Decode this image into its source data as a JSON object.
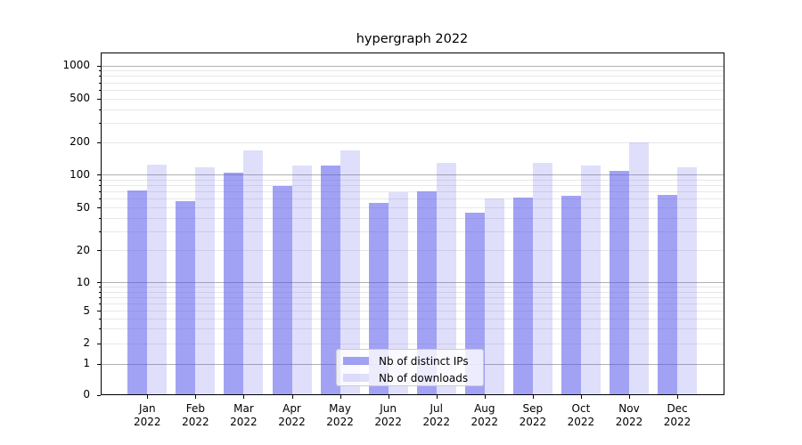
{
  "title": "hypergraph 2022",
  "legend": {
    "items": [
      {
        "label": "Nb of distinct IPs"
      },
      {
        "label": "Nb of downloads"
      }
    ]
  },
  "y_axis": {
    "ticks": [
      {
        "value": 1000,
        "label": "1000"
      },
      {
        "value": 500,
        "label": "500"
      },
      {
        "value": 200,
        "label": "200"
      },
      {
        "value": 100,
        "label": "100"
      },
      {
        "value": 50,
        "label": "50"
      },
      {
        "value": 20,
        "label": "20"
      },
      {
        "value": 10,
        "label": "10"
      },
      {
        "value": 5,
        "label": "5"
      },
      {
        "value": 2,
        "label": "2"
      },
      {
        "value": 1,
        "label": "1"
      },
      {
        "value": 0,
        "label": "0"
      }
    ]
  },
  "x_axis": {
    "year": "2022",
    "months": [
      "Jan",
      "Feb",
      "Mar",
      "Apr",
      "May",
      "Jun",
      "Jul",
      "Aug",
      "Sep",
      "Oct",
      "Nov",
      "Dec"
    ]
  },
  "colors": {
    "bar_base": "#5555eb",
    "ips_bar_alpha": 0.55,
    "downloads_bar_alpha": 0.19,
    "ips_bar_effective": "#a2a2f4",
    "downloads_bar_effective": "#dfdffb",
    "grid_major": "#b0b0b0",
    "grid_minor": "#e8e8e8",
    "spine": "#000000"
  },
  "chart_data": {
    "type": "bar",
    "title": "hypergraph 2022",
    "categories": [
      "Jan 2022",
      "Feb 2022",
      "Mar 2022",
      "Apr 2022",
      "May 2022",
      "Jun 2022",
      "Jul 2022",
      "Aug 2022",
      "Sep 2022",
      "Oct 2022",
      "Nov 2022",
      "Dec 2022"
    ],
    "series": [
      {
        "name": "Nb of distinct IPs",
        "values": [
          71,
          57,
          103,
          79,
          122,
          55,
          70,
          45,
          62,
          64,
          107,
          65
        ]
      },
      {
        "name": "Nb of downloads",
        "values": [
          124,
          116,
          167,
          121,
          167,
          69,
          127,
          60,
          128,
          121,
          199,
          117
        ]
      }
    ],
    "yscale": "symlog",
    "y_ticks": [
      0,
      1,
      2,
      5,
      10,
      20,
      50,
      100,
      200,
      500,
      1000
    ],
    "ylim": [
      0,
      1300
    ],
    "xlabel": "",
    "ylabel": "",
    "grid": "horizontal, major at powers of 10 + faint log minors",
    "legend_position": "lower center"
  }
}
